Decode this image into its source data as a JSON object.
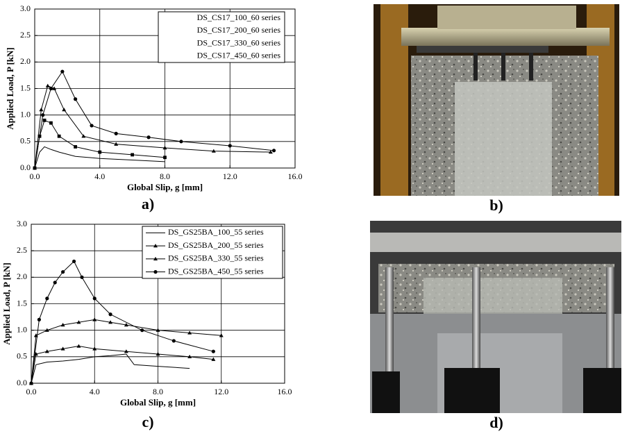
{
  "panel_labels": [
    "a)",
    "b)",
    "c)",
    "d)"
  ],
  "chart_data": [
    {
      "type": "line",
      "xlabel": "Global Slip, g [mm]",
      "ylabel": "Applied Load, P [kN]",
      "xlim": [
        0,
        16
      ],
      "ylim": [
        0,
        3
      ],
      "xticks": [
        {
          "value": 0,
          "label": "0.0"
        },
        {
          "value": 4,
          "label": "4.0"
        },
        {
          "value": 8,
          "label": "8.0"
        },
        {
          "value": 12,
          "label": "12.0"
        },
        {
          "value": 16,
          "label": "16.0"
        }
      ],
      "yticks": [
        {
          "value": 0,
          "label": "0.0"
        },
        0.5,
        {
          "value": 1,
          "label": "1.0"
        },
        1.5,
        {
          "value": 2,
          "label": "2.0"
        },
        2.5,
        {
          "value": 3,
          "label": "3.0"
        }
      ],
      "grid": true,
      "legend_samples": false,
      "series": [
        {
          "name": "DS_CS17_100_60 series",
          "color": "#000000",
          "marker": "none",
          "x": [
            0,
            0.3,
            0.6,
            1.0,
            1.5,
            2.5,
            4,
            6,
            8
          ],
          "values": [
            0,
            0.3,
            0.4,
            0.35,
            0.3,
            0.22,
            0.18,
            0.15,
            0.12
          ]
        },
        {
          "name": "DS_CS17_200_60 series",
          "color": "#000000",
          "marker": "square",
          "x": [
            0,
            0.3,
            0.6,
            1.0,
            1.5,
            2.5,
            4,
            6,
            8
          ],
          "values": [
            0,
            0.6,
            0.9,
            0.85,
            0.6,
            0.4,
            0.3,
            0.25,
            0.2
          ]
        },
        {
          "name": "DS_CS17_330_60 series",
          "color": "#000000",
          "marker": "triangle",
          "x": [
            0,
            0.4,
            0.8,
            1.2,
            1.8,
            3,
            5,
            8,
            11,
            14.5
          ],
          "values": [
            0,
            1.1,
            1.55,
            1.5,
            1.1,
            0.6,
            0.45,
            0.38,
            0.32,
            0.3
          ]
        },
        {
          "name": "DS_CS17_450_60 series",
          "color": "#000000",
          "marker": "circle",
          "x": [
            0,
            0.5,
            1.0,
            1.7,
            2.5,
            3.5,
            5,
            7,
            9,
            12,
            14.7
          ],
          "values": [
            0,
            1.0,
            1.5,
            1.82,
            1.3,
            0.8,
            0.65,
            0.58,
            0.5,
            0.42,
            0.33
          ]
        }
      ]
    },
    {
      "type": "line",
      "xlabel": "Global Slip, g [mm]",
      "ylabel": "Applied Load, P [kN]",
      "xlim": [
        0,
        16
      ],
      "ylim": [
        0,
        3
      ],
      "xticks": [
        {
          "value": 0,
          "label": "0.0"
        },
        {
          "value": 4,
          "label": "4.0"
        },
        {
          "value": 8,
          "label": "8.0"
        },
        {
          "value": 12,
          "label": "12.0"
        },
        {
          "value": 16,
          "label": "16.0"
        }
      ],
      "yticks": [
        {
          "value": 0,
          "label": "0.0"
        },
        0.5,
        {
          "value": 1,
          "label": "1.0"
        },
        1.5,
        {
          "value": 2,
          "label": "2.0"
        },
        2.5,
        {
          "value": 3,
          "label": "3.0"
        }
      ],
      "grid": true,
      "legend_samples": true,
      "series": [
        {
          "name": "DS_GS25BA_100_55 series",
          "color": "#000000",
          "marker": "none",
          "x": [
            0,
            0.3,
            1,
            2,
            3,
            4,
            5,
            6,
            6.5,
            8,
            10
          ],
          "values": [
            0,
            0.35,
            0.4,
            0.42,
            0.45,
            0.5,
            0.52,
            0.55,
            0.35,
            0.32,
            0.28
          ]
        },
        {
          "name": "DS_GS25BA_200_55 series",
          "color": "#000000",
          "marker": "triangle",
          "x": [
            0,
            0.3,
            1,
            2,
            3,
            4,
            6,
            8,
            10,
            11.5
          ],
          "values": [
            0,
            0.55,
            0.6,
            0.65,
            0.7,
            0.65,
            0.6,
            0.55,
            0.5,
            0.45
          ]
        },
        {
          "name": "DS_GS25BA_330_55 series",
          "color": "#000000",
          "marker": "triangle",
          "x": [
            0,
            0.3,
            1,
            2,
            3,
            4,
            5,
            6,
            8,
            10,
            12
          ],
          "values": [
            0,
            0.9,
            1.0,
            1.1,
            1.15,
            1.2,
            1.15,
            1.1,
            1.0,
            0.95,
            0.9
          ]
        },
        {
          "name": "DS_GS25BA_450_55 series",
          "color": "#000000",
          "marker": "circle",
          "x": [
            0,
            0.5,
            1,
            1.5,
            2,
            2.7,
            3.2,
            4,
            5,
            7,
            9,
            11.5
          ],
          "values": [
            0,
            1.2,
            1.6,
            1.9,
            2.1,
            2.3,
            2.0,
            1.6,
            1.3,
            1.0,
            0.8,
            0.6
          ]
        }
      ]
    }
  ]
}
